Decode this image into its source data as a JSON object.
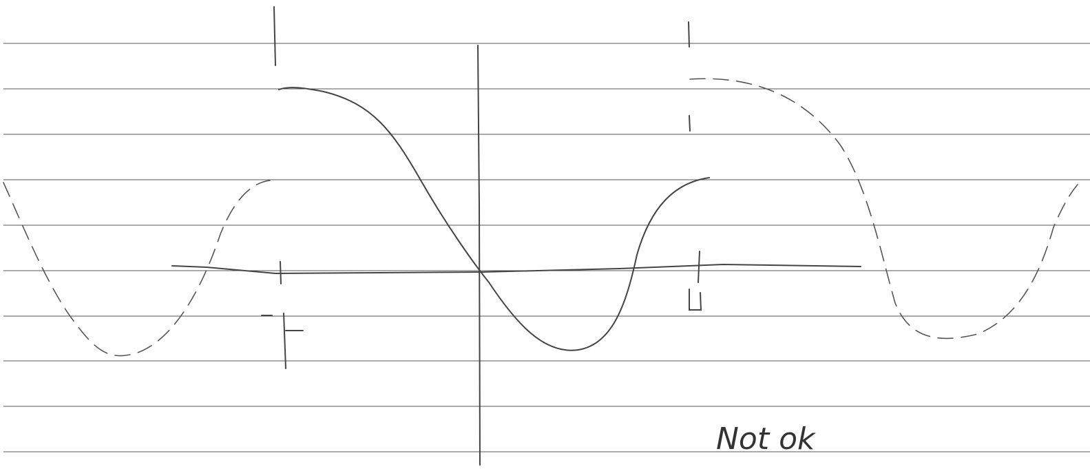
{
  "annotation": "Not ok"
}
